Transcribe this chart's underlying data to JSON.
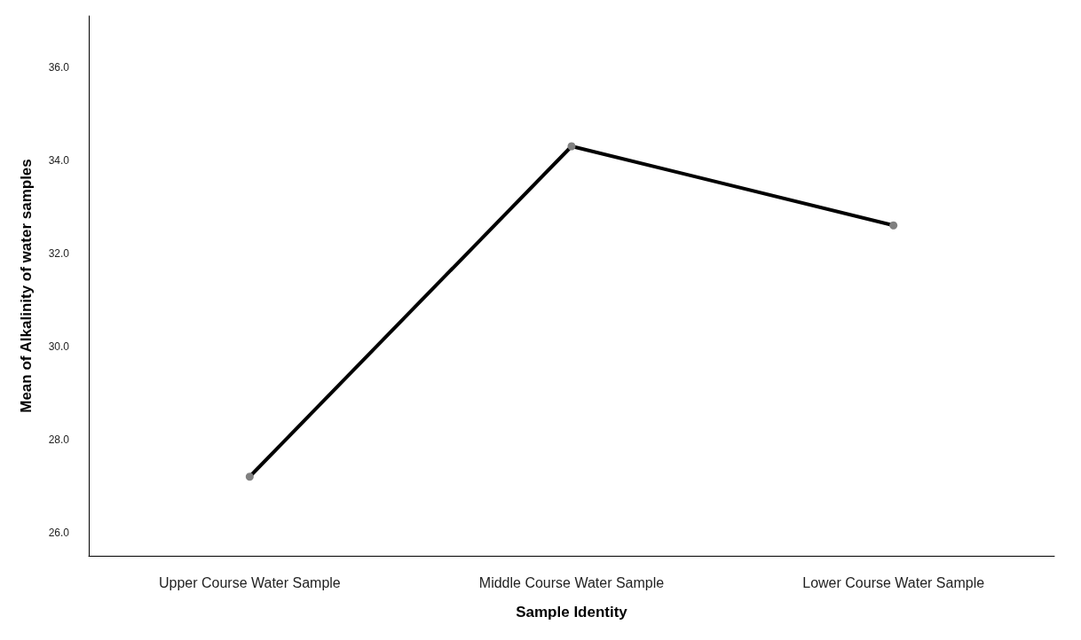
{
  "chart_data": {
    "type": "line",
    "xlabel": "Sample Identity",
    "ylabel": "Mean of Alkalinity of water samples",
    "categories": [
      "Upper Course Water Sample",
      "Middle Course Water Sample",
      "Lower Course Water Sample"
    ],
    "series": [
      {
        "color": "#000000",
        "values": [
          27.2,
          34.3,
          32.6
        ]
      }
    ],
    "ylim": [
      25.5,
      37.1
    ],
    "yticks": [
      {
        "value": 26,
        "label": "26.0"
      },
      {
        "value": 28,
        "label": "28.0"
      },
      {
        "value": 30,
        "label": "30.0"
      },
      {
        "value": 32,
        "label": "32.0"
      },
      {
        "value": 34,
        "label": "34.0"
      },
      {
        "value": 36,
        "label": "36.0"
      }
    ],
    "grid": false,
    "marker": "circle",
    "line_style": "solid"
  }
}
